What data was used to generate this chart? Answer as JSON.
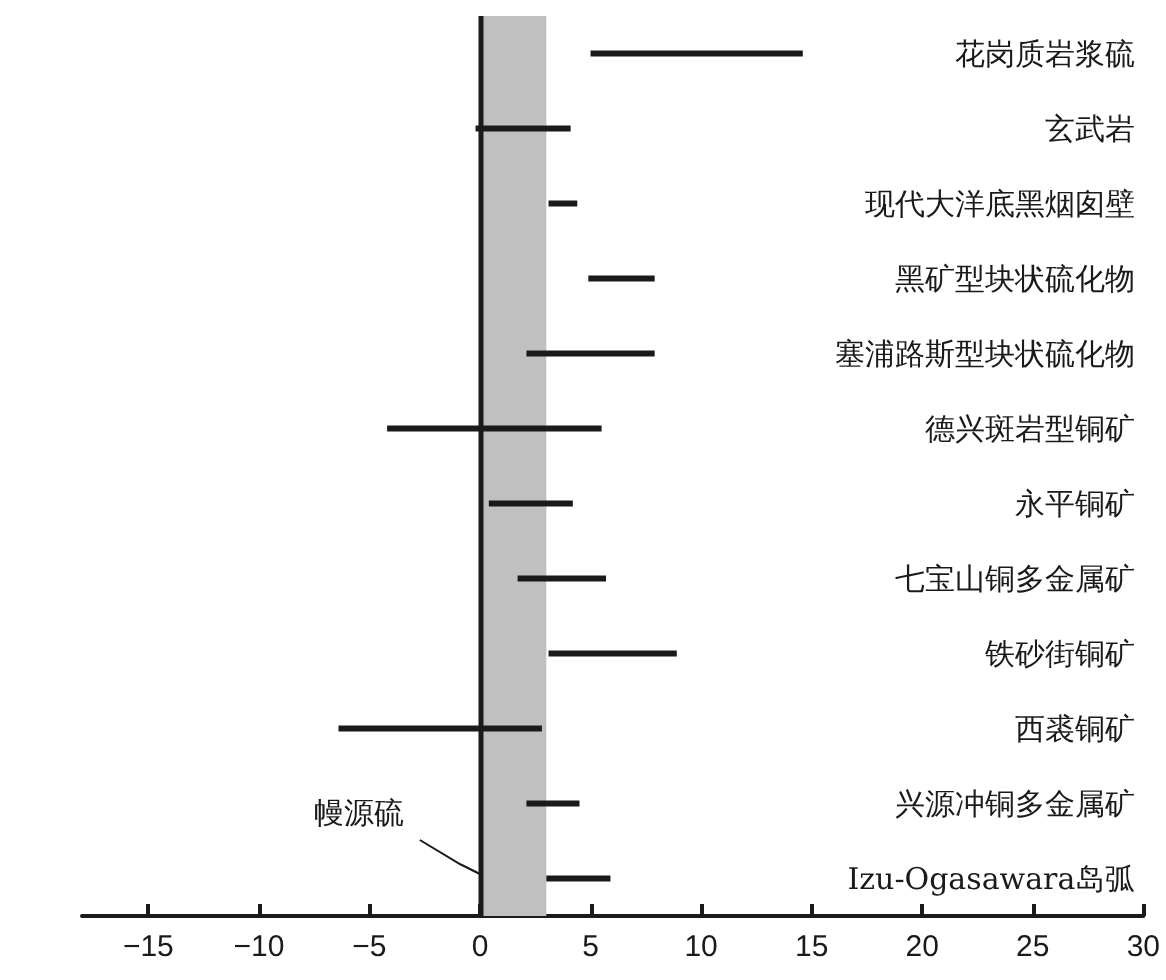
{
  "chart_data": {
    "type": "bar",
    "orientation": "horizontal",
    "categories": [
      "花岗质岩浆硫",
      "玄武岩",
      "现代大洋底黑烟囱壁",
      "黑矿型块状硫化物",
      "塞浦路斯型块状硫化物",
      "德兴斑岩型铜矿",
      "永平铜矿",
      "七宝山铜多金属矿",
      "铁砂街铜矿",
      "西裘铜矿",
      "兴源冲铜多金属矿",
      "Izu-Ogasawara岛弧"
    ],
    "base": [
      5.0,
      -0.2,
      3.1,
      4.9,
      2.1,
      -4.2,
      0.4,
      1.7,
      3.1,
      -6.4,
      2.1,
      3.0
    ],
    "values": [
      9.6,
      4.3,
      1.3,
      3.0,
      5.8,
      9.7,
      3.8,
      4.0,
      5.8,
      9.2,
      2.4,
      2.9
    ],
    "color": "#1a1a1a",
    "xlim": [
      -18,
      30
    ],
    "xticks": [
      -15,
      -10,
      -5,
      0,
      5,
      10,
      15,
      20,
      25,
      30
    ],
    "ref_lines": [
      {
        "axis": "x",
        "value": 0,
        "color": "#1a1a1a"
      }
    ],
    "bands": [
      {
        "axis": "x",
        "from": 0,
        "to": 3,
        "label": "幔源硫",
        "color": "#c0c0c0"
      }
    ],
    "grid": false
  }
}
